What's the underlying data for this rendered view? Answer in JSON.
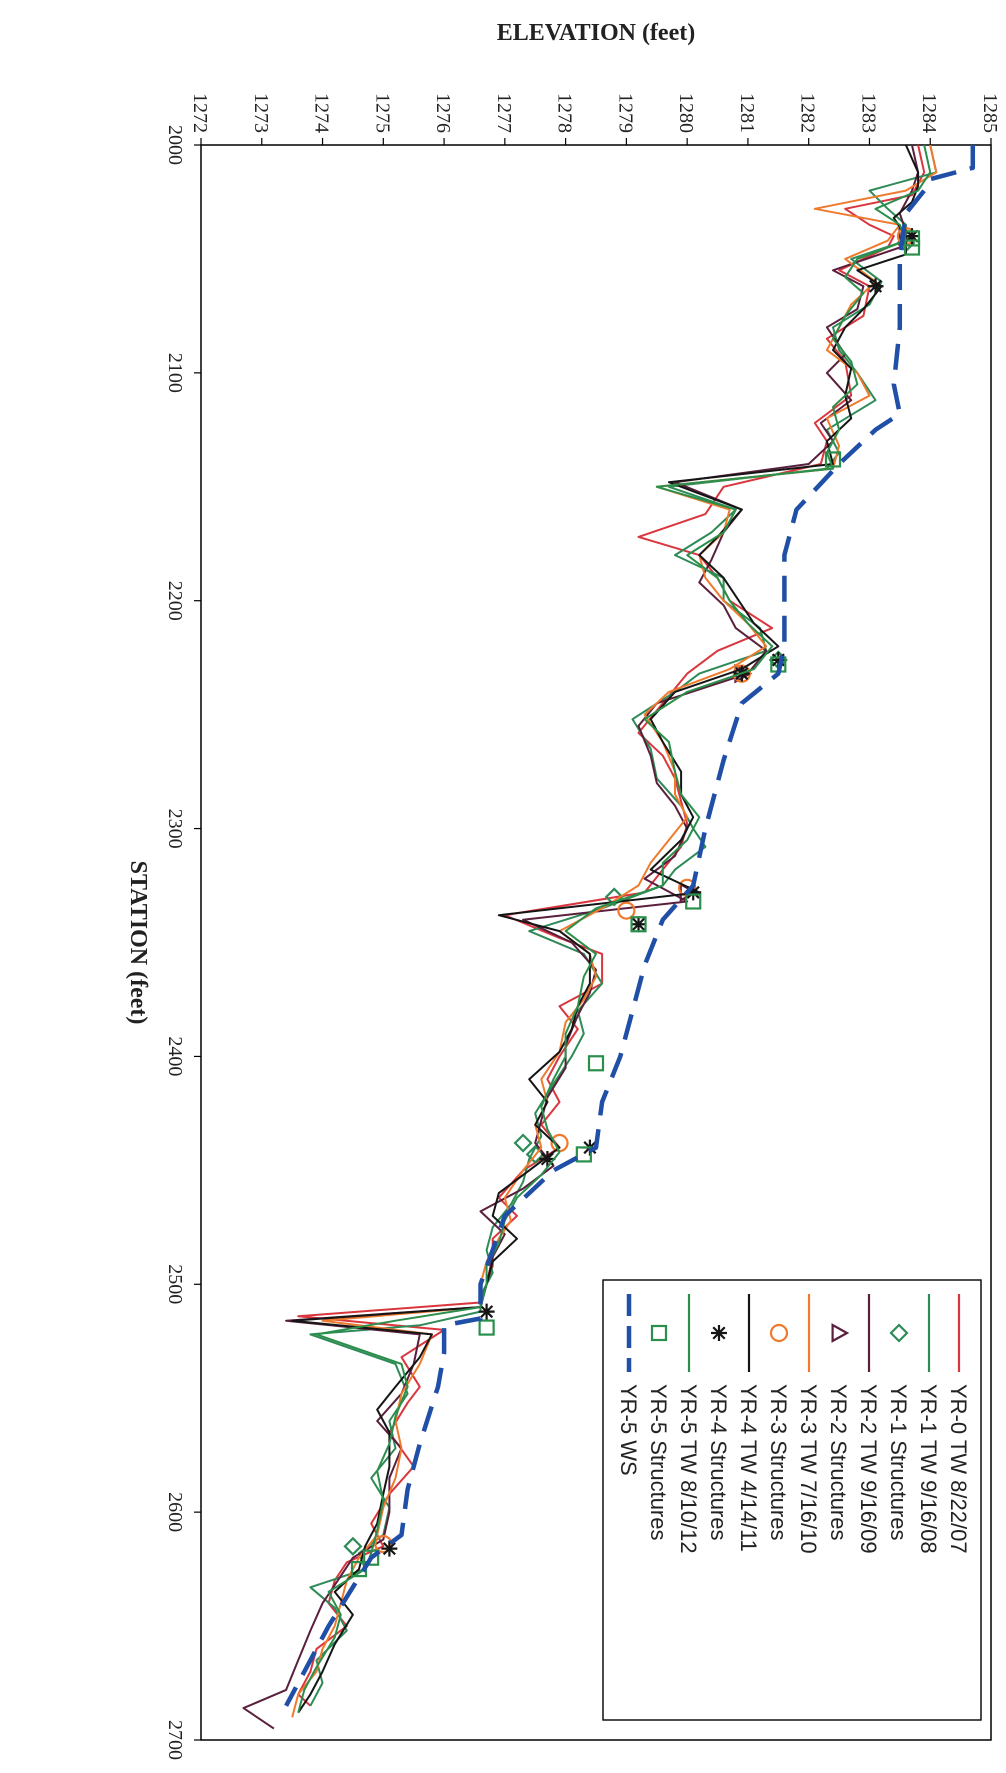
{
  "chart_data": {
    "type": "line",
    "title": "",
    "xlabel": "STATION (feet)",
    "ylabel": "ELEVATION (feet)",
    "xlim": [
      2000,
      2700
    ],
    "ylim": [
      1272,
      1285
    ],
    "x_ticks": [
      "2000",
      "2100",
      "2200",
      "2300",
      "2400",
      "2500",
      "2600",
      "2700"
    ],
    "y_ticks": [
      "1272",
      "1273",
      "1274",
      "1275",
      "1276",
      "1277",
      "1278",
      "1279",
      "1280",
      "1281",
      "1282",
      "1283",
      "1284",
      "1285"
    ],
    "orientation": "rotated 90 degrees clockwise",
    "legend_position": "top-right",
    "grid": false,
    "series": [
      {
        "name": "YR-0 TW 8/22/07",
        "type": "line",
        "color": "#d9363e",
        "x": [
          2000,
          2012,
          2022,
          2028,
          2035,
          2040,
          2045,
          2055,
          2062,
          2075,
          2085,
          2095,
          2110,
          2122,
          2130,
          2140,
          2150,
          2162,
          2172,
          2180,
          2190,
          2200,
          2212,
          2222,
          2232,
          2245,
          2258,
          2268,
          2278,
          2288,
          2298,
          2308,
          2318,
          2328,
          2338,
          2348,
          2355,
          2368,
          2378,
          2388,
          2400,
          2410,
          2420,
          2430,
          2440,
          2450,
          2462,
          2470,
          2480,
          2492,
          2500,
          2508,
          2514,
          2520,
          2532,
          2545,
          2552,
          2565,
          2580,
          2592,
          2605,
          2615,
          2622,
          2630,
          2640,
          2650,
          2660,
          2670,
          2680,
          2685
        ],
        "y": [
          1283.8,
          1283.9,
          1283.7,
          1282.6,
          1283.0,
          1283.4,
          1283.3,
          1282.5,
          1283.0,
          1282.9,
          1282.3,
          1282.6,
          1282.7,
          1282.1,
          1282.3,
          1282.2,
          1280.6,
          1280.3,
          1279.2,
          1280.2,
          1280.5,
          1280.7,
          1281.4,
          1280.5,
          1280.0,
          1279.6,
          1279.2,
          1279.6,
          1279.8,
          1279.9,
          1280.0,
          1279.9,
          1279.6,
          1279.3,
          1277.0,
          1277.9,
          1278.6,
          1278.6,
          1277.9,
          1278.2,
          1277.9,
          1277.7,
          1277.9,
          1277.6,
          1277.9,
          1277.3,
          1276.9,
          1277.2,
          1276.8,
          1276.8,
          1276.7,
          1276.6,
          1273.6,
          1276.0,
          1275.3,
          1275.6,
          1275.4,
          1275.1,
          1275.5,
          1275.1,
          1274.8,
          1275.0,
          1274.4,
          1274.2,
          1274.1,
          1274.4,
          1273.9,
          1273.8,
          1273.6,
          1273.8
        ]
      },
      {
        "name": "YR-1 TW 9/16/08",
        "type": "line",
        "color": "#2e8b57",
        "x": [
          2000,
          2012,
          2020,
          2028,
          2035,
          2042,
          2050,
          2060,
          2070,
          2080,
          2090,
          2100,
          2112,
          2125,
          2135,
          2142,
          2150,
          2160,
          2170,
          2180,
          2190,
          2200,
          2212,
          2222,
          2232,
          2240,
          2252,
          2265,
          2278,
          2290,
          2300,
          2308,
          2318,
          2325,
          2335,
          2345,
          2355,
          2368,
          2380,
          2390,
          2400,
          2412,
          2425,
          2435,
          2445,
          2455,
          2465,
          2475,
          2485,
          2495,
          2505,
          2512,
          2518,
          2522,
          2535,
          2548,
          2560,
          2572,
          2585,
          2598,
          2610,
          2618,
          2625,
          2633,
          2642,
          2652,
          2665,
          2675,
          2685
        ],
        "y": [
          1284.0,
          1284.1,
          1283.0,
          1283.3,
          1283.6,
          1283.6,
          1282.7,
          1283.2,
          1283.0,
          1282.4,
          1282.5,
          1282.8,
          1283.1,
          1282.3,
          1282.5,
          1282.3,
          1279.7,
          1280.8,
          1280.4,
          1279.8,
          1280.6,
          1280.6,
          1281.2,
          1281.3,
          1280.2,
          1279.8,
          1279.1,
          1279.4,
          1279.5,
          1279.9,
          1280.1,
          1280.3,
          1279.8,
          1279.6,
          1278.6,
          1277.4,
          1278.3,
          1278.6,
          1278.2,
          1278.3,
          1278.1,
          1277.8,
          1277.5,
          1277.6,
          1277.4,
          1277.3,
          1277.1,
          1276.8,
          1276.7,
          1276.8,
          1276.6,
          1276.6,
          1275.6,
          1273.8,
          1275.2,
          1275.4,
          1275.1,
          1275.2,
          1274.8,
          1275.1,
          1275.0,
          1274.6,
          1274.7,
          1273.8,
          1274.2,
          1274.4,
          1273.9,
          1274.0,
          1273.8
        ]
      },
      {
        "name": "YR-1 Structures",
        "type": "marker",
        "marker": "diamond",
        "color": "#2e8b57",
        "x": [
          2043,
          2226,
          2330,
          2438,
          2443,
          2615
        ],
        "y": [
          1283.6,
          1281.5,
          1278.8,
          1277.3,
          1277.5,
          1274.5
        ]
      },
      {
        "name": "YR-2 TW 9/16/09",
        "type": "line",
        "color": "#5a1f3c",
        "x": [
          2000,
          2012,
          2020,
          2030,
          2038,
          2045,
          2055,
          2062,
          2072,
          2080,
          2092,
          2100,
          2112,
          2122,
          2130,
          2140,
          2148,
          2160,
          2170,
          2182,
          2192,
          2202,
          2212,
          2222,
          2232,
          2245,
          2255,
          2268,
          2280,
          2290,
          2300,
          2312,
          2322,
          2332,
          2340,
          2350,
          2362,
          2372,
          2382,
          2395,
          2405,
          2418,
          2428,
          2438,
          2448,
          2458,
          2468,
          2478,
          2488,
          2500,
          2510,
          2516,
          2522,
          2535,
          2548,
          2560,
          2572,
          2585,
          2600,
          2612,
          2620,
          2628,
          2640,
          2652,
          2665,
          2678,
          2686,
          2695
        ],
        "y": [
          1283.7,
          1283.8,
          1283.7,
          1283.5,
          1283.6,
          1283.5,
          1282.4,
          1282.9,
          1282.8,
          1282.3,
          1282.6,
          1282.3,
          1282.7,
          1282.2,
          1282.4,
          1282.0,
          1279.8,
          1280.9,
          1280.6,
          1280.4,
          1280.2,
          1280.6,
          1280.8,
          1281.3,
          1281.0,
          1279.5,
          1279.2,
          1279.4,
          1279.5,
          1279.8,
          1280.0,
          1279.8,
          1279.3,
          1280.0,
          1277.3,
          1278.1,
          1278.5,
          1278.4,
          1278.2,
          1278.0,
          1278.0,
          1277.7,
          1277.6,
          1277.5,
          1277.8,
          1277.3,
          1276.6,
          1277.0,
          1276.8,
          1276.7,
          1276.6,
          1273.4,
          1275.6,
          1275.5,
          1275.3,
          1274.9,
          1275.3,
          1275.1,
          1275.1,
          1275.0,
          1274.5,
          1274.3,
          1274.0,
          1273.8,
          1273.6,
          1273.4,
          1272.7,
          1273.2
        ]
      },
      {
        "name": "YR-2 Structures",
        "type": "marker",
        "marker": "triangle",
        "color": "#5a1f3c",
        "x": [
          2040,
          2232,
          2328
        ],
        "y": [
          1283.6,
          1280.9,
          1280.0
        ]
      },
      {
        "name": "YR-3 TW 7/16/10",
        "type": "line",
        "color": "#ef7a2e",
        "x": [
          2000,
          2012,
          2020,
          2028,
          2035,
          2042,
          2050,
          2060,
          2070,
          2080,
          2090,
          2100,
          2110,
          2120,
          2132,
          2142,
          2150,
          2160,
          2170,
          2180,
          2190,
          2200,
          2210,
          2220,
          2230,
          2240,
          2250,
          2262,
          2275,
          2285,
          2295,
          2305,
          2315,
          2325,
          2335,
          2345,
          2355,
          2365,
          2375,
          2385,
          2398,
          2410,
          2420,
          2430,
          2440,
          2450,
          2462,
          2472,
          2480,
          2490,
          2500,
          2510,
          2516,
          2522,
          2535,
          2548,
          2560,
          2572,
          2585,
          2598,
          2610,
          2620,
          2630,
          2640,
          2650,
          2660,
          2670,
          2680,
          2690
        ],
        "y": [
          1284.0,
          1284.1,
          1283.6,
          1282.1,
          1283.5,
          1283.3,
          1282.6,
          1283.1,
          1282.7,
          1282.5,
          1282.3,
          1282.8,
          1283.0,
          1282.3,
          1282.5,
          1282.4,
          1279.5,
          1280.7,
          1280.6,
          1280.2,
          1280.3,
          1280.6,
          1281.0,
          1281.3,
          1280.7,
          1279.7,
          1279.3,
          1279.6,
          1279.8,
          1279.8,
          1280.0,
          1279.7,
          1279.4,
          1279.2,
          1278.6,
          1277.9,
          1278.4,
          1278.5,
          1278.3,
          1278.0,
          1277.9,
          1277.6,
          1277.7,
          1277.5,
          1277.6,
          1277.3,
          1277.0,
          1277.1,
          1276.9,
          1276.7,
          1276.6,
          1276.6,
          1274.0,
          1275.8,
          1275.6,
          1275.3,
          1275.2,
          1275.3,
          1275.2,
          1275.0,
          1274.9,
          1274.6,
          1274.4,
          1274.3,
          1274.2,
          1274.0,
          1273.9,
          1273.6,
          1273.5
        ]
      },
      {
        "name": "YR-3 Structures",
        "type": "marker",
        "marker": "circle",
        "color": "#ef7a2e",
        "x": [
          2040,
          2232,
          2326,
          2336,
          2438,
          2614
        ],
        "y": [
          1283.6,
          1280.9,
          1280.0,
          1279.0,
          1277.9,
          1275.0
        ]
      },
      {
        "name": "YR-4 TW 4/14/11",
        "type": "line",
        "color": "#151515",
        "x": [
          2000,
          2012,
          2018,
          2025,
          2032,
          2040,
          2048,
          2055,
          2062,
          2072,
          2080,
          2090,
          2098,
          2110,
          2120,
          2130,
          2140,
          2148,
          2160,
          2172,
          2180,
          2190,
          2198,
          2210,
          2220,
          2230,
          2240,
          2252,
          2262,
          2275,
          2285,
          2295,
          2305,
          2318,
          2328,
          2338,
          2345,
          2355,
          2368,
          2378,
          2388,
          2398,
          2410,
          2420,
          2430,
          2440,
          2450,
          2460,
          2470,
          2480,
          2490,
          2500,
          2510,
          2516,
          2522,
          2532,
          2545,
          2555,
          2565,
          2580,
          2592,
          2605,
          2615,
          2625,
          2635,
          2645,
          2658,
          2670,
          2680,
          2688
        ],
        "y": [
          1283.6,
          1283.8,
          1283.8,
          1283.7,
          1283.4,
          1283.6,
          1283.6,
          1282.8,
          1283.2,
          1282.9,
          1282.6,
          1282.4,
          1282.7,
          1282.6,
          1282.7,
          1282.3,
          1282.4,
          1279.7,
          1280.9,
          1280.5,
          1280.2,
          1280.6,
          1280.8,
          1281.1,
          1281.5,
          1280.9,
          1279.8,
          1279.4,
          1279.6,
          1279.9,
          1279.9,
          1280.1,
          1279.9,
          1279.4,
          1280.2,
          1276.9,
          1277.9,
          1278.4,
          1278.4,
          1278.2,
          1278.1,
          1277.9,
          1277.4,
          1277.7,
          1277.5,
          1277.9,
          1277.4,
          1276.9,
          1276.8,
          1277.2,
          1276.8,
          1276.7,
          1276.6,
          1273.5,
          1275.8,
          1275.6,
          1275.2,
          1274.9,
          1275.1,
          1275.1,
          1275.0,
          1274.9,
          1274.7,
          1274.6,
          1274.2,
          1274.5,
          1274.2,
          1274.0,
          1273.8,
          1273.6
        ]
      },
      {
        "name": "YR-4 Structures",
        "type": "marker",
        "marker": "star",
        "color": "#151515",
        "x": [
          2040,
          2062,
          2226,
          2232,
          2328,
          2342,
          2440,
          2445,
          2512,
          2616
        ],
        "y": [
          1283.7,
          1283.1,
          1281.5,
          1280.9,
          1280.1,
          1279.2,
          1278.4,
          1277.7,
          1276.7,
          1275.1
        ]
      },
      {
        "name": "YR-5 TW 8/10/12",
        "type": "line",
        "color": "#2a8f4a",
        "x": [
          2000,
          2012,
          2020,
          2028,
          2035,
          2042,
          2050,
          2058,
          2065,
          2075,
          2085,
          2095,
          2105,
          2115,
          2125,
          2135,
          2142,
          2150,
          2160,
          2170,
          2180,
          2190,
          2200,
          2210,
          2220,
          2230,
          2240,
          2252,
          2262,
          2275,
          2285,
          2295,
          2305,
          2315,
          2325,
          2335,
          2345,
          2355,
          2365,
          2378,
          2390,
          2400,
          2410,
          2422,
          2432,
          2442,
          2452,
          2462,
          2472,
          2482,
          2492,
          2500,
          2510,
          2516,
          2522,
          2535,
          2545,
          2558,
          2570,
          2582,
          2595,
          2608,
          2618,
          2625,
          2635,
          2645,
          2655,
          2668,
          2678,
          2688
        ],
        "y": [
          1283.9,
          1284.0,
          1283.8,
          1283.1,
          1283.5,
          1283.6,
          1282.8,
          1282.6,
          1282.9,
          1282.6,
          1282.4,
          1282.7,
          1282.8,
          1282.4,
          1282.5,
          1282.3,
          1282.4,
          1279.5,
          1280.8,
          1280.6,
          1280.0,
          1280.5,
          1280.7,
          1281.0,
          1281.4,
          1281.1,
          1280.0,
          1279.3,
          1279.7,
          1279.8,
          1279.9,
          1280.2,
          1280.0,
          1279.6,
          1279.6,
          1278.5,
          1278.0,
          1278.5,
          1278.3,
          1278.2,
          1278.0,
          1278.0,
          1277.8,
          1277.6,
          1277.7,
          1277.9,
          1277.6,
          1277.2,
          1277.0,
          1276.9,
          1276.7,
          1276.7,
          1276.6,
          1275.2,
          1273.9,
          1275.3,
          1275.4,
          1275.2,
          1275.1,
          1274.9,
          1275.0,
          1274.9,
          1274.8,
          1274.7,
          1274.1,
          1274.3,
          1274.2,
          1273.9,
          1273.7,
          1273.6
        ]
      },
      {
        "name": "YR-5 Structures",
        "type": "marker",
        "marker": "square",
        "color": "#2a8f4a",
        "x": [
          2041,
          2045,
          2138,
          2228,
          2332,
          2342,
          2403,
          2443,
          2519,
          2620,
          2625
        ],
        "y": [
          1283.7,
          1283.7,
          1282.4,
          1281.5,
          1280.1,
          1279.2,
          1278.5,
          1278.3,
          1276.7,
          1274.8,
          1274.6
        ]
      },
      {
        "name": "YR-5 WS",
        "type": "dashed",
        "color": "#1f4fa6",
        "x": [
          2000,
          2010,
          2015,
          2020,
          2030,
          2050,
          2080,
          2105,
          2118,
          2125,
          2140,
          2160,
          2180,
          2200,
          2220,
          2232,
          2245,
          2270,
          2300,
          2325,
          2340,
          2360,
          2380,
          2400,
          2420,
          2440,
          2450,
          2470,
          2500,
          2515,
          2518,
          2530,
          2545,
          2570,
          2590,
          2610,
          2620,
          2650,
          2685
        ],
        "y": [
          1284.7,
          1284.7,
          1284.0,
          1283.9,
          1283.6,
          1283.5,
          1283.5,
          1283.4,
          1283.5,
          1283.1,
          1282.5,
          1281.8,
          1281.6,
          1281.6,
          1281.6,
          1281.5,
          1280.9,
          1280.6,
          1280.3,
          1280.1,
          1279.6,
          1279.3,
          1279.1,
          1278.9,
          1278.6,
          1278.5,
          1277.8,
          1277.0,
          1276.6,
          1276.6,
          1276.0,
          1276.0,
          1275.9,
          1275.6,
          1275.4,
          1275.3,
          1274.8,
          1274.1,
          1273.4
        ]
      }
    ]
  }
}
